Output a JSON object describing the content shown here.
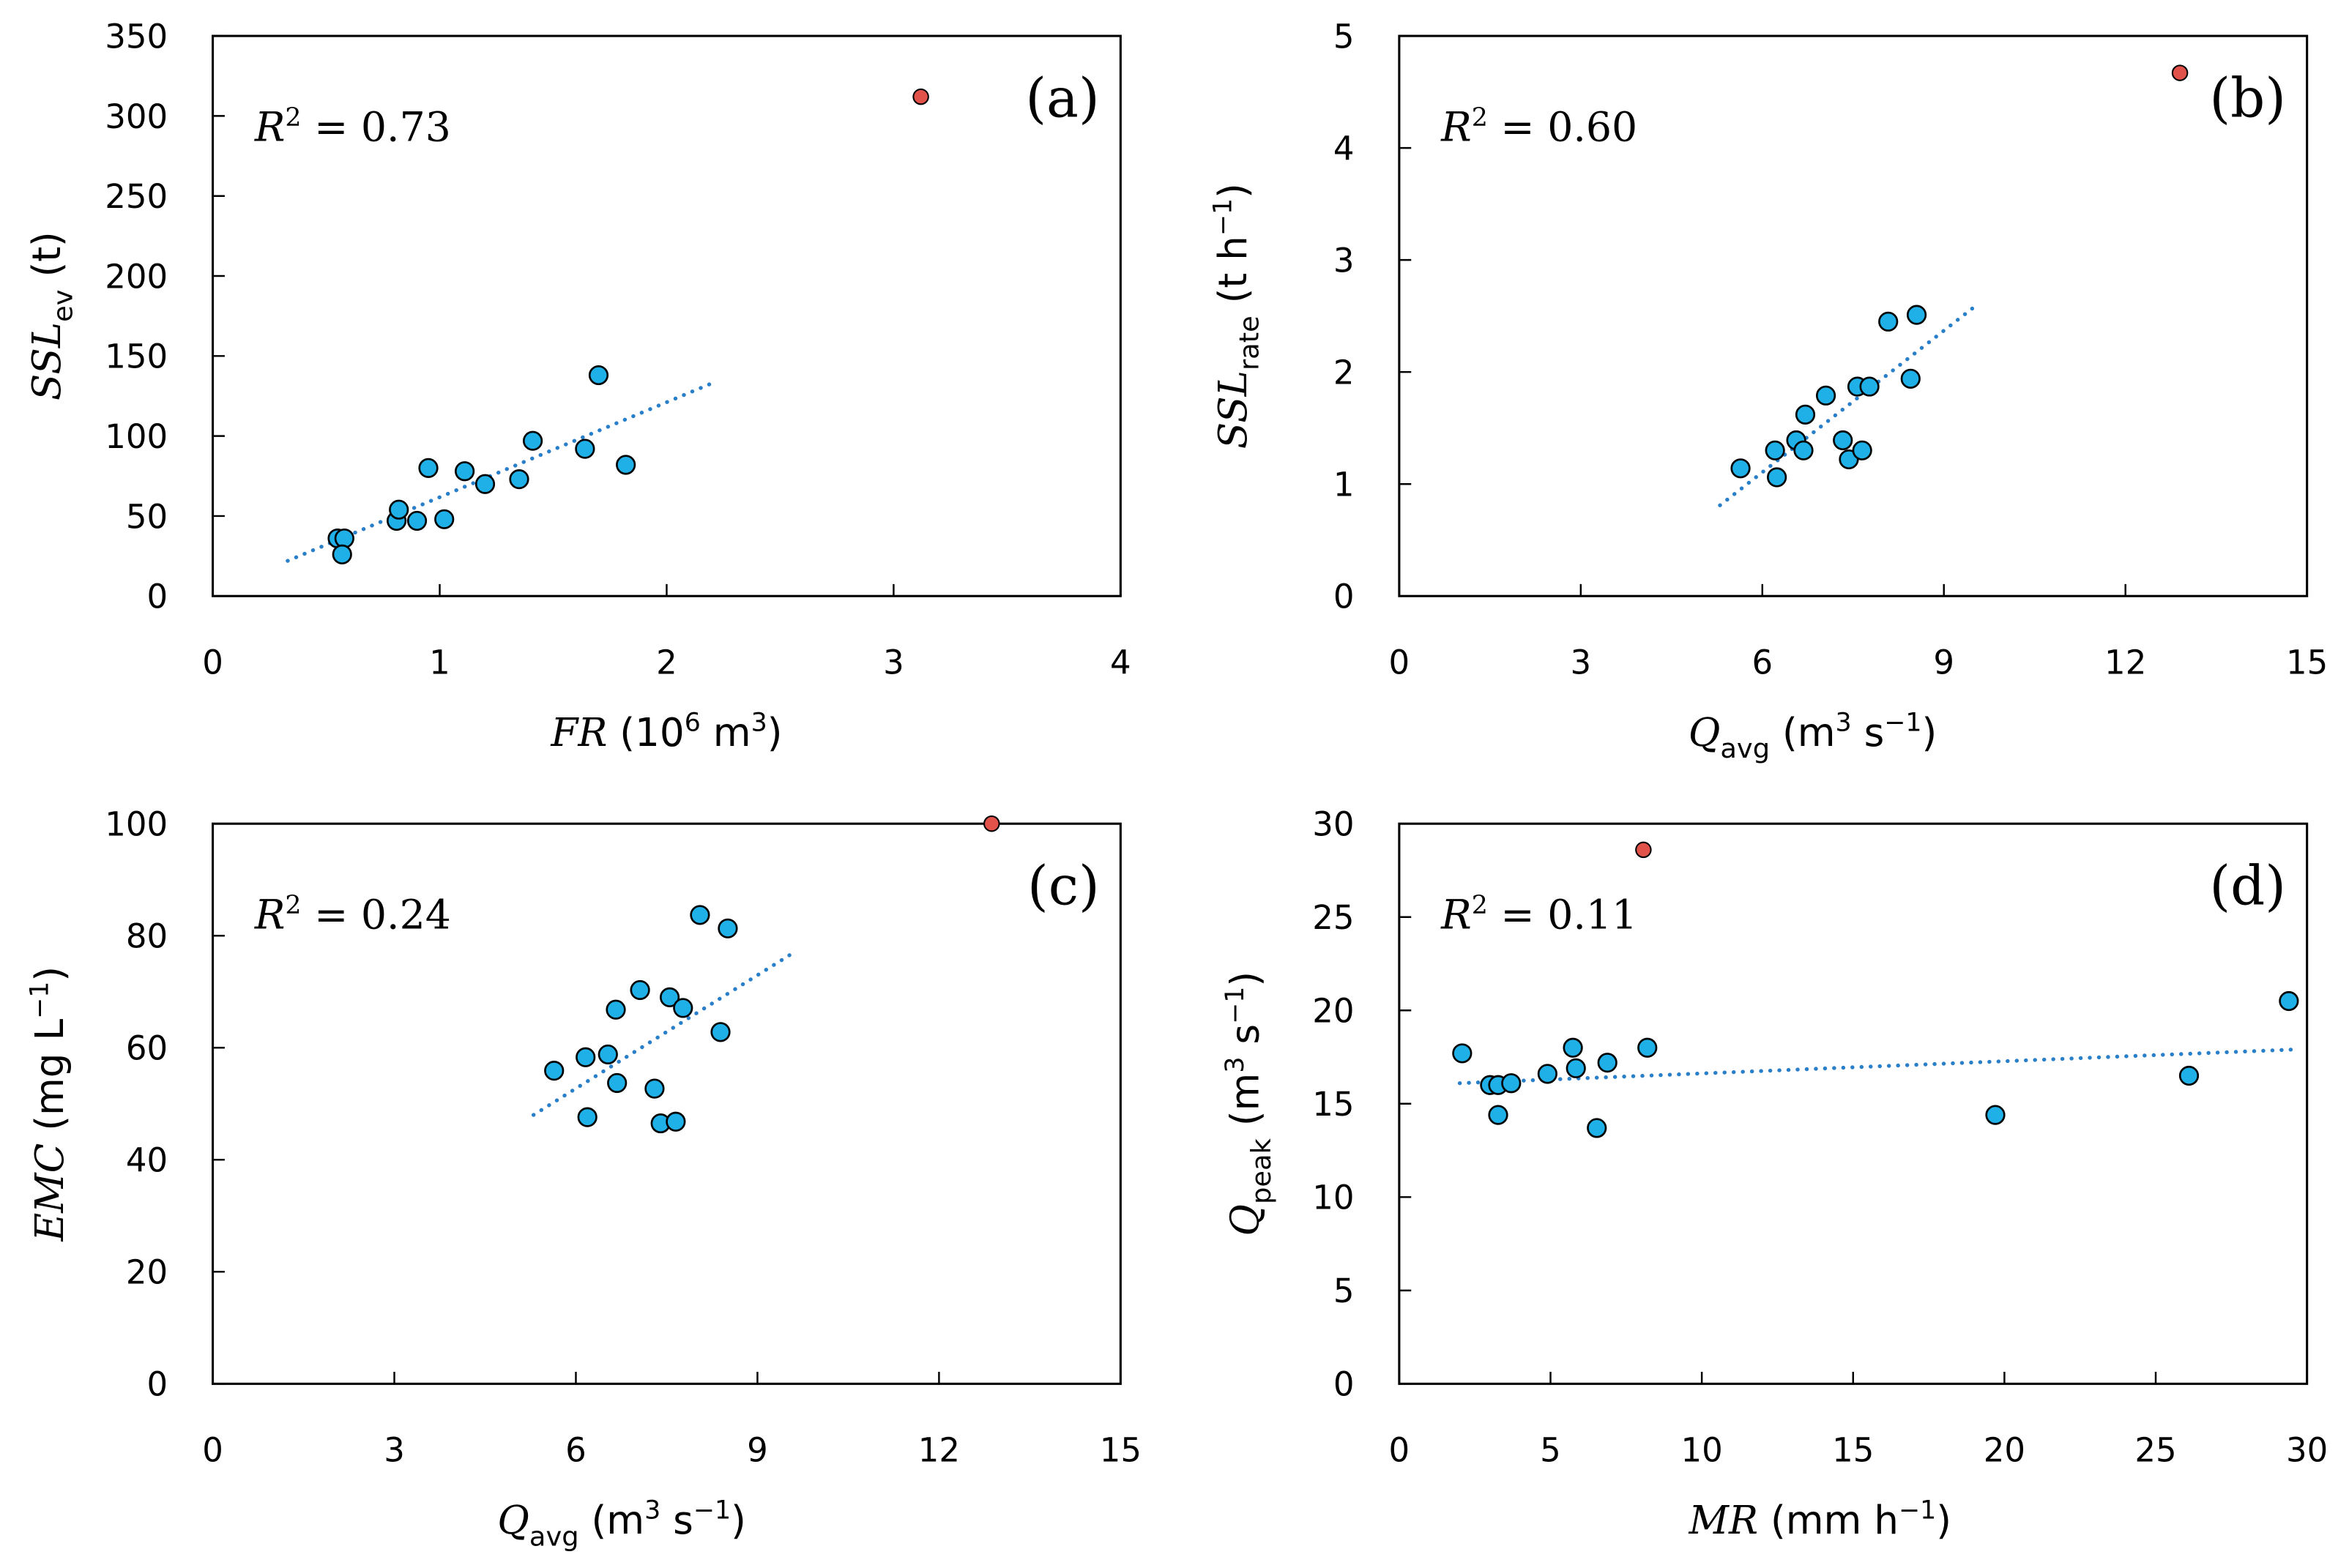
{
  "chart_data": [
    {
      "type": "scatter",
      "panel_label": "(a)",
      "r2_text": {
        "var": "R",
        "sup": "2",
        "rest": " = 0.73"
      },
      "xlabel": {
        "var": "FR",
        "unit_pre": " (10",
        "unit_sup1": "6",
        "unit_mid": " m",
        "unit_sup2": "3",
        "unit_post": ")"
      },
      "ylabel": {
        "var": "SSL",
        "sub": "ev",
        "unit": " (t)"
      },
      "xlim": [
        0,
        4
      ],
      "ylim": [
        0,
        350
      ],
      "xticks": [
        "0",
        "1",
        "2",
        "3",
        "4"
      ],
      "yticks": [
        "0",
        "50",
        "100",
        "150",
        "200",
        "250",
        "300",
        "350"
      ],
      "points": [
        [
          0.55,
          36
        ],
        [
          0.58,
          36
        ],
        [
          0.57,
          26
        ],
        [
          0.81,
          47
        ],
        [
          0.82,
          54
        ],
        [
          0.9,
          47
        ],
        [
          0.95,
          80
        ],
        [
          1.02,
          48
        ],
        [
          1.11,
          78
        ],
        [
          1.2,
          70
        ],
        [
          1.35,
          73
        ],
        [
          1.41,
          97
        ],
        [
          1.64,
          92
        ],
        [
          1.7,
          138
        ],
        [
          1.82,
          82
        ]
      ],
      "outlier": [
        3.12,
        312
      ],
      "trendline": [
        [
          0.33,
          22
        ],
        [
          2.2,
          133
        ]
      ]
    },
    {
      "type": "scatter",
      "panel_label": "(b)",
      "r2_text": {
        "var": "R",
        "sup": "2",
        "rest": " = 0.60"
      },
      "xlabel": {
        "var": "Q",
        "sub": "avg",
        "unit_pre": " (m",
        "unit_sup1": "3",
        "unit_mid": " s",
        "unit_sup2": "−1",
        "unit_post": ")"
      },
      "ylabel": {
        "var": "SSL",
        "sub": "rate",
        "unit_pre": " (t h",
        "unit_sup": "−1",
        "unit_post": ")"
      },
      "xlim": [
        0,
        15
      ],
      "ylim": [
        0,
        5
      ],
      "xticks": [
        "0",
        "3",
        "6",
        "9",
        "12",
        "15"
      ],
      "yticks": [
        "0",
        "1",
        "2",
        "3",
        "4",
        "5"
      ],
      "points": [
        [
          5.64,
          1.14
        ],
        [
          6.21,
          1.3
        ],
        [
          6.24,
          1.06
        ],
        [
          6.56,
          1.39
        ],
        [
          6.68,
          1.3
        ],
        [
          6.71,
          1.62
        ],
        [
          7.05,
          1.79
        ],
        [
          7.33,
          1.39
        ],
        [
          7.43,
          1.22
        ],
        [
          7.57,
          1.87
        ],
        [
          7.65,
          1.3
        ],
        [
          7.77,
          1.87
        ],
        [
          8.08,
          2.45
        ],
        [
          8.45,
          1.94
        ],
        [
          8.55,
          2.51
        ]
      ],
      "outlier": [
        12.9,
        4.67
      ],
      "trendline": [
        [
          5.3,
          0.81
        ],
        [
          9.5,
          2.58
        ]
      ]
    },
    {
      "type": "scatter",
      "panel_label": "(c)",
      "r2_text": {
        "var": "R",
        "sup": "2",
        "rest": " = 0.24"
      },
      "xlabel": {
        "var": "Q",
        "sub": "avg",
        "unit_pre": " (m",
        "unit_sup1": "3",
        "unit_mid": " s",
        "unit_sup2": "−1",
        "unit_post": ")"
      },
      "ylabel": {
        "var": "EMC",
        "unit_pre": " (mg L",
        "unit_sup": "−1",
        "unit_post": ")"
      },
      "xlim": [
        0,
        15
      ],
      "ylim": [
        0,
        100
      ],
      "xticks": [
        "0",
        "3",
        "6",
        "9",
        "12",
        "15"
      ],
      "yticks": [
        "0",
        "20",
        "40",
        "60",
        "80",
        "100"
      ],
      "points": [
        [
          5.64,
          55.9
        ],
        [
          6.16,
          58.3
        ],
        [
          6.19,
          47.6
        ],
        [
          6.53,
          58.8
        ],
        [
          6.66,
          66.8
        ],
        [
          6.68,
          53.7
        ],
        [
          7.06,
          70.3
        ],
        [
          7.3,
          52.7
        ],
        [
          7.4,
          46.5
        ],
        [
          7.55,
          69.0
        ],
        [
          7.65,
          46.8
        ],
        [
          7.77,
          67.1
        ],
        [
          8.05,
          83.7
        ],
        [
          8.39,
          62.8
        ],
        [
          8.51,
          81.3
        ]
      ],
      "outlier": [
        12.87,
        100
      ],
      "trendline": [
        [
          5.3,
          48
        ],
        [
          9.6,
          77
        ]
      ]
    },
    {
      "type": "scatter",
      "panel_label": "(d)",
      "r2_text": {
        "var": "R",
        "sup": "2",
        "rest": " = 0.11"
      },
      "xlabel": {
        "var": "MR",
        "unit_pre": " (mm h",
        "unit_sup1": "−1",
        "unit_post": ")"
      },
      "ylabel": {
        "var": "Q",
        "sub": "peak",
        "unit_pre": " (m",
        "unit_sup1": "3",
        "unit_mid": " s",
        "unit_sup2": "−1",
        "unit_post": ")"
      },
      "xlim": [
        0,
        30
      ],
      "ylim": [
        0,
        30
      ],
      "xticks": [
        "0",
        "5",
        "10",
        "15",
        "20",
        "25",
        "30"
      ],
      "yticks": [
        "0",
        "5",
        "10",
        "15",
        "20",
        "25",
        "30"
      ],
      "points": [
        [
          2.08,
          17.7
        ],
        [
          3.0,
          16.0
        ],
        [
          3.27,
          16.0
        ],
        [
          3.27,
          14.4
        ],
        [
          3.7,
          16.1
        ],
        [
          4.9,
          16.6
        ],
        [
          5.74,
          18.0
        ],
        [
          5.84,
          16.9
        ],
        [
          6.53,
          13.7
        ],
        [
          6.88,
          17.2
        ],
        [
          8.2,
          18.0
        ],
        [
          19.7,
          14.4
        ],
        [
          26.1,
          16.5
        ],
        [
          29.4,
          20.5
        ]
      ],
      "outlier": [
        8.07,
        28.6
      ],
      "trendline": [
        [
          2.0,
          16.1
        ],
        [
          29.5,
          17.9
        ]
      ]
    }
  ],
  "colors": {
    "point": "#1fb0e8",
    "outlier": "#e0524a",
    "trend": "#2a7fc9",
    "stroke": "#000000"
  }
}
